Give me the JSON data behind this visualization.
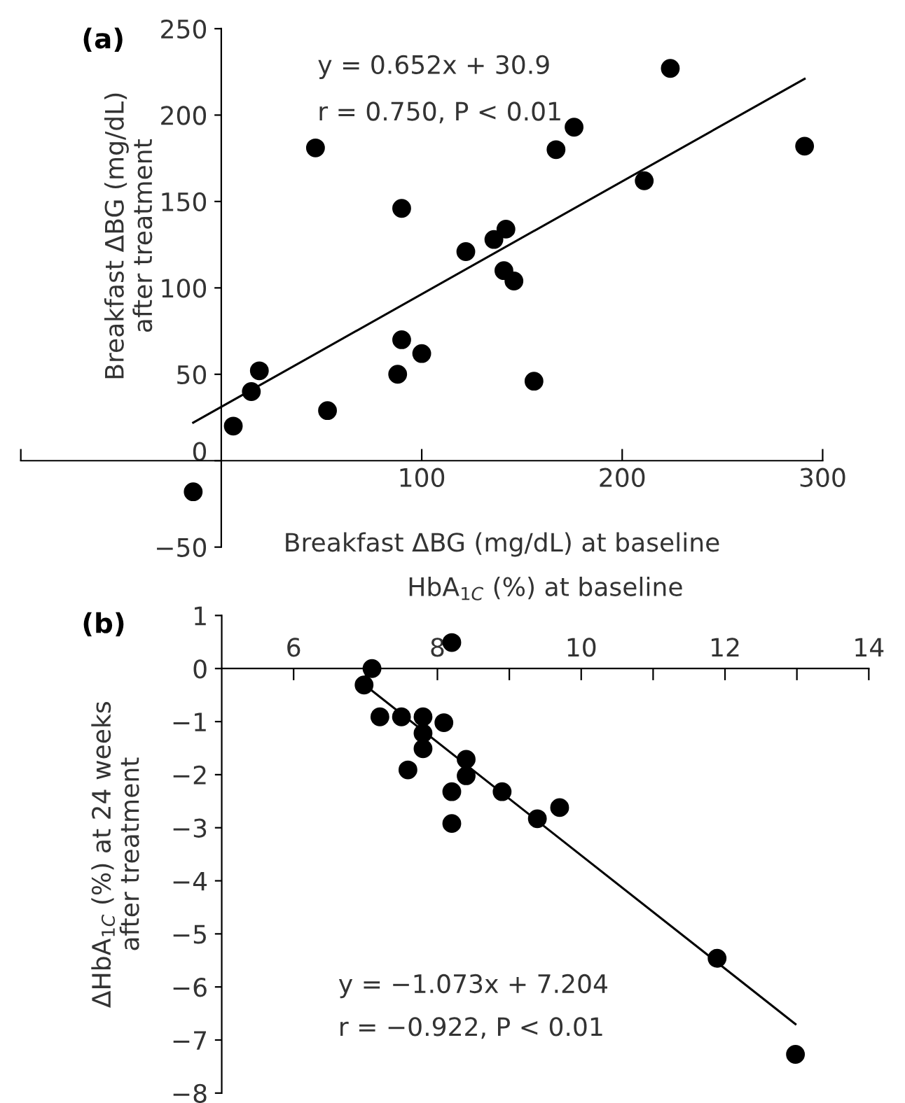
{
  "chart_data": [
    {
      "type": "scatter",
      "title": "(a)",
      "xlabel": "Breakfast ΔBG (mg/dL) at baseline",
      "ylabel": "Breakfast ΔBG (mg/dL)\nafter treatment",
      "annotations": [
        "y = 0.652x + 30.9",
        "r = 0.750, P < 0.01"
      ],
      "xlim": [
        -100,
        300
      ],
      "ylim": [
        -50,
        250
      ],
      "xticks": [
        {
          "value": -100,
          "label": null
        },
        100,
        200,
        300
      ],
      "yticks": [
        -50,
        0,
        50,
        100,
        150,
        200,
        250
      ],
      "grid": false,
      "legend": false,
      "series": [
        {
          "marker": "circle",
          "color": "#000000",
          "x": [
            -14,
            6,
            15,
            19,
            47,
            53,
            88,
            90,
            90,
            100,
            122,
            136,
            142,
            141,
            146,
            156,
            167,
            176,
            211,
            224,
            291
          ],
          "values": [
            -18,
            20,
            40,
            52,
            181,
            29,
            50,
            146,
            70,
            62,
            121,
            128,
            134,
            110,
            104,
            46,
            180,
            193,
            162,
            227,
            182
          ]
        },
        {
          "type": "line",
          "marker": "none",
          "color": "#000000",
          "line_style": "solid",
          "x": [
            -14,
            291
          ],
          "values": [
            22,
            221
          ]
        }
      ]
    },
    {
      "type": "scatter",
      "title": "(b)",
      "xlabel": "HbA$_{1C}$ (%) at baseline",
      "ylabel": "ΔHbA$_{1C}$ (%) at 24 weeks\nafter treatment",
      "annotations": [
        "y = −1.073x + 7.204",
        "r = −0.922, P < 0.01"
      ],
      "xlim": [
        5,
        14
      ],
      "ylim": [
        -8,
        1
      ],
      "xticks": [
        6,
        {
          "value": 7,
          "label": null
        },
        8,
        {
          "value": 9,
          "label": null
        },
        10,
        {
          "value": 11,
          "label": null
        },
        12,
        {
          "value": 13,
          "label": null
        },
        14
      ],
      "yticks": [
        -8,
        -7,
        -6,
        -5,
        -4,
        -3,
        -2,
        -1,
        0,
        1
      ],
      "grid": false,
      "legend": false,
      "series": [
        {
          "marker": "circle",
          "color": "#000000",
          "x": [
            6.98,
            7.09,
            7.2,
            7.5,
            7.59,
            7.8,
            7.8,
            7.8,
            8.09,
            8.2,
            8.2,
            8.2,
            8.4,
            8.4,
            8.9,
            9.39,
            9.7,
            11.89,
            12.98
          ],
          "values": [
            -0.31,
            0.0,
            -0.91,
            -0.91,
            -1.91,
            -0.91,
            -1.22,
            -1.51,
            -1.02,
            0.49,
            -2.32,
            -2.92,
            -1.71,
            -2.02,
            -2.32,
            -2.83,
            -2.62,
            -5.46,
            -7.27
          ]
        },
        {
          "type": "line",
          "marker": "none",
          "color": "#000000",
          "line_style": "solid",
          "x": [
            6.98,
            12.98
          ],
          "values": [
            -0.3,
            -6.7
          ]
        }
      ]
    }
  ]
}
